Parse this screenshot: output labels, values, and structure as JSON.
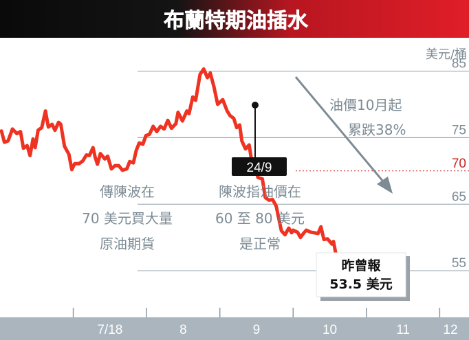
{
  "chart_data": {
    "type": "line",
    "title": "布蘭特期油插水",
    "unit_label": "美元/桶",
    "y_ticks": [
      {
        "value": 85,
        "label": "85"
      },
      {
        "value": 75,
        "label": "75"
      },
      {
        "value": 70,
        "label": "70"
      },
      {
        "value": 65,
        "label": "65"
      },
      {
        "value": 55,
        "label": "55"
      }
    ],
    "x_ticks": [
      {
        "x": 3.0,
        "label": "7/18"
      },
      {
        "x": 4.0,
        "label": "8"
      },
      {
        "x": 5.0,
        "label": "9"
      },
      {
        "x": 6.0,
        "label": "10"
      },
      {
        "x": 7.0,
        "label": "11"
      },
      {
        "x": 8.0,
        "label": "12"
      }
    ],
    "ylim": [
      48,
      90
    ],
    "xlim": [
      2.0,
      8.4
    ],
    "series": [
      {
        "points": [
          [
            2.02,
            76.0
          ],
          [
            2.06,
            74.3
          ],
          [
            2.11,
            74.5
          ],
          [
            2.17,
            76.3
          ],
          [
            2.23,
            75.6
          ],
          [
            2.28,
            75.9
          ],
          [
            2.32,
            73.4
          ],
          [
            2.37,
            73.8
          ],
          [
            2.41,
            72.3
          ],
          [
            2.45,
            74.8
          ],
          [
            2.48,
            73.5
          ],
          [
            2.52,
            76.1
          ],
          [
            2.57,
            76.5
          ],
          [
            2.62,
            79.0
          ],
          [
            2.66,
            76.6
          ],
          [
            2.71,
            77.0
          ],
          [
            2.75,
            76.1
          ],
          [
            2.8,
            77.3
          ],
          [
            2.83,
            77.0
          ],
          [
            2.88,
            73.7
          ],
          [
            2.94,
            72.5
          ],
          [
            2.98,
            70.2
          ],
          [
            3.02,
            71.1
          ],
          [
            3.08,
            71.1
          ],
          [
            3.13,
            71.5
          ],
          [
            3.18,
            72.4
          ],
          [
            3.22,
            72.3
          ],
          [
            3.27,
            73.5
          ],
          [
            3.3,
            72.0
          ],
          [
            3.33,
            71.0
          ],
          [
            3.37,
            72.6
          ],
          [
            3.43,
            71.8
          ],
          [
            3.47,
            72.2
          ],
          [
            3.52,
            70.3
          ],
          [
            3.57,
            70.8
          ],
          [
            3.62,
            70.8
          ],
          [
            3.67,
            70.1
          ],
          [
            3.73,
            70.3
          ],
          [
            3.77,
            71.4
          ],
          [
            3.82,
            71.2
          ],
          [
            3.86,
            73.1
          ],
          [
            3.9,
            74.2
          ],
          [
            3.95,
            74.0
          ],
          [
            3.99,
            75.3
          ],
          [
            4.04,
            75.5
          ],
          [
            4.09,
            76.7
          ],
          [
            4.14,
            75.9
          ],
          [
            4.19,
            76.7
          ],
          [
            4.24,
            76.3
          ],
          [
            4.29,
            77.6
          ],
          [
            4.34,
            76.4
          ],
          [
            4.4,
            77.1
          ],
          [
            4.43,
            78.8
          ],
          [
            4.49,
            77.5
          ],
          [
            4.55,
            79.0
          ],
          [
            4.58,
            78.6
          ],
          [
            4.63,
            81.1
          ],
          [
            4.67,
            80.6
          ],
          [
            4.73,
            84.5
          ],
          [
            4.78,
            85.3
          ],
          [
            4.83,
            84.0
          ],
          [
            4.87,
            84.7
          ],
          [
            4.92,
            82.6
          ],
          [
            4.97,
            80.0
          ],
          [
            5.04,
            80.7
          ],
          [
            5.1,
            79.0
          ],
          [
            5.14,
            78.3
          ],
          [
            5.19,
            77.9
          ],
          [
            5.23,
            76.5
          ],
          [
            5.27,
            76.9
          ],
          [
            5.3,
            74.5
          ],
          [
            5.35,
            73.3
          ],
          [
            5.4,
            73.9
          ],
          [
            5.45,
            70.4
          ],
          [
            5.48,
            71.2
          ],
          [
            5.52,
            69.0
          ],
          [
            5.58,
            68.8
          ],
          [
            5.62,
            66.0
          ],
          [
            5.67,
            65.6
          ],
          [
            5.72,
            65.7
          ],
          [
            5.77,
            64.7
          ],
          [
            5.8,
            63.1
          ],
          [
            5.84,
            61.0
          ],
          [
            5.89,
            60.4
          ],
          [
            5.94,
            61.4
          ],
          [
            5.98,
            60.7
          ],
          [
            6.0,
            61.1
          ],
          [
            6.06,
            60.8
          ],
          [
            6.1,
            60.0
          ],
          [
            6.14,
            60.6
          ],
          [
            6.18,
            61.1
          ],
          [
            6.24,
            60.8
          ],
          [
            6.29,
            60.7
          ],
          [
            6.34,
            60.6
          ],
          [
            6.38,
            61.6
          ],
          [
            6.42,
            59.7
          ],
          [
            6.47,
            59.8
          ],
          [
            6.53,
            59.0
          ],
          [
            6.55,
            59.4
          ],
          [
            6.58,
            57.7
          ],
          [
            6.62,
            55.3
          ],
          [
            6.65,
            55.6
          ],
          [
            6.68,
            53.2
          ],
          [
            6.72,
            56.9
          ],
          [
            6.76,
            56.0
          ]
        ]
      }
    ],
    "annotations": {
      "peak_date": "24/9",
      "trend_line1": "油價10月起",
      "trend_line2": "累跌38%",
      "left_note": [
        "傳陳波在",
        "70 美元買大量",
        "原油期貨"
      ],
      "middle_note": [
        "陳波指油價在",
        "60 至 80 美元",
        "是正常"
      ],
      "latest_box": [
        "昨曾報",
        "53.5 美元"
      ]
    },
    "colors": {
      "line": "#ee3322",
      "title_bar_dark": "#111111",
      "title_bar_red": "#dd1f28",
      "gridline": "#8a9aa6",
      "axis_band": "#aab5bd",
      "ref_70_text": "#cc2222"
    }
  }
}
